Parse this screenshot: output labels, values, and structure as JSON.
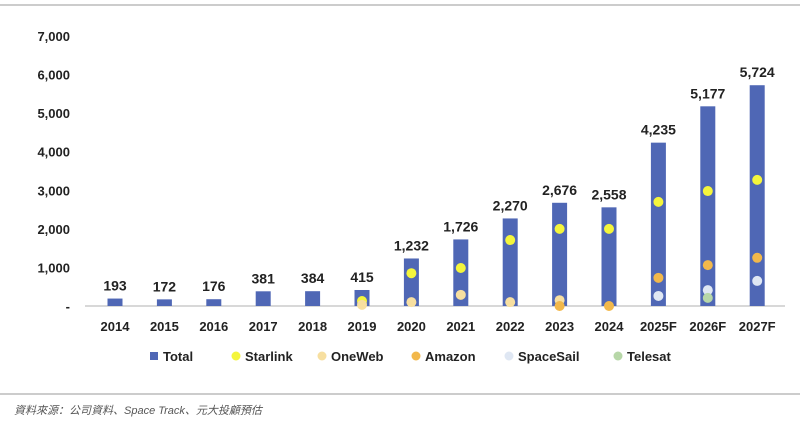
{
  "chart_data": {
    "type": "bar",
    "categories": [
      "2014",
      "2015",
      "2016",
      "2017",
      "2018",
      "2019",
      "2020",
      "2021",
      "2022",
      "2023",
      "2024",
      "2025F",
      "2026F",
      "2027F"
    ],
    "ylim": [
      0,
      7000
    ],
    "yticks": [
      "-",
      "1,000",
      "2,000",
      "3,000",
      "4,000",
      "5,000",
      "6,000",
      "7,000"
    ],
    "bar_series": {
      "name": "Total",
      "color": "#4f67b5",
      "values": [
        193,
        172,
        176,
        381,
        384,
        415,
        1232,
        1726,
        2270,
        2676,
        2558,
        4235,
        5177,
        5724
      ],
      "labels": [
        "193",
        "172",
        "176",
        "381",
        "384",
        "415",
        "1,232",
        "1,726",
        "2,270",
        "2,676",
        "2,558",
        "4,235",
        "5,177",
        "5,724"
      ]
    },
    "point_series": [
      {
        "name": "Starlink",
        "color": "#f4f53c",
        "values": [
          null,
          null,
          null,
          null,
          null,
          130,
          850,
          985,
          1710,
          2000,
          2000,
          2700,
          2980,
          3270
        ]
      },
      {
        "name": "OneWeb",
        "color": "#f7dfa0",
        "values": [
          null,
          null,
          null,
          null,
          null,
          30,
          100,
          290,
          100,
          150,
          null,
          null,
          null,
          null
        ]
      },
      {
        "name": "Amazon",
        "color": "#f2b84b",
        "values": [
          null,
          null,
          null,
          null,
          null,
          null,
          null,
          null,
          null,
          0,
          0,
          730,
          1060,
          1250
        ]
      },
      {
        "name": "SpaceSail",
        "color": "#dfe7f3",
        "values": [
          null,
          null,
          null,
          null,
          null,
          null,
          null,
          null,
          null,
          null,
          null,
          260,
          410,
          650
        ]
      },
      {
        "name": "Telesat",
        "color": "#b7d7a8",
        "values": [
          null,
          null,
          null,
          null,
          null,
          null,
          null,
          null,
          null,
          null,
          null,
          null,
          210,
          null
        ]
      }
    ],
    "legend_position": "bottom"
  },
  "source": "資料來源：公司資料、Space Track、元大投顧預估"
}
